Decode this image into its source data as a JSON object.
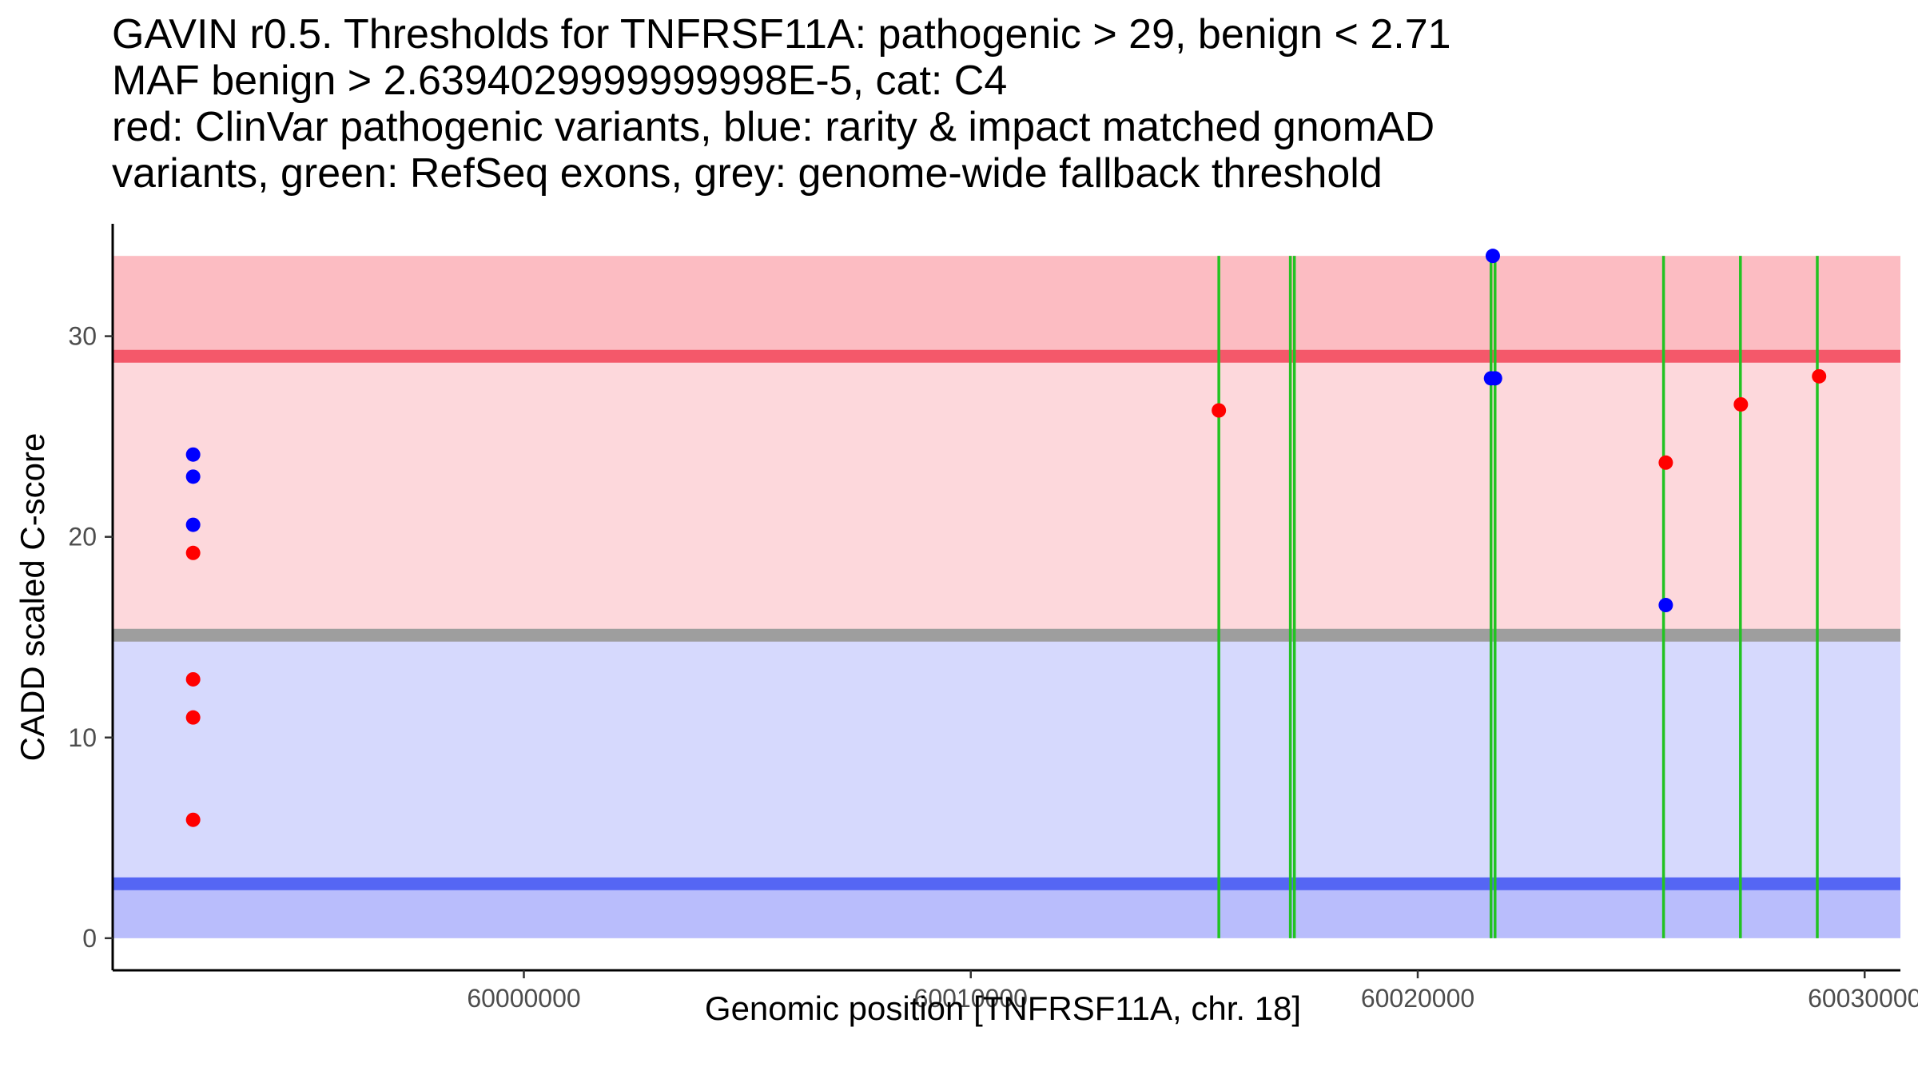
{
  "chart_data": {
    "type": "scatter",
    "title_lines": [
      "GAVIN r0.5. Thresholds for TNFRSF11A: pathogenic > 29, benign < 2.71",
      "MAF benign > 2.6394029999999998E-5, cat: C4",
      "red: ClinVar pathogenic variants, blue: rarity & impact matched gnomAD",
      "variants, green: RefSeq exons, grey: genome-wide fallback threshold"
    ],
    "xlabel": "Genomic position [TNFRSF11A, chr. 18]",
    "ylabel": "CADD scaled C-score",
    "xlim": [
      59990800,
      60030800
    ],
    "ylim": [
      -1.6,
      35.6
    ],
    "xticks": [
      {
        "value": 60000000,
        "label": "60000000"
      },
      {
        "value": 60010000,
        "label": "60010000"
      },
      {
        "value": 60020000,
        "label": "60020000"
      },
      {
        "value": 60030000,
        "label": "60030000"
      }
    ],
    "yticks": [
      {
        "value": 0,
        "label": "0"
      },
      {
        "value": 10,
        "label": "10"
      },
      {
        "value": 20,
        "label": "20"
      },
      {
        "value": 30,
        "label": "30"
      }
    ],
    "bands": [
      {
        "name": "pathogenic-upper-region",
        "ymin": 29,
        "ymax": 34,
        "color": "#fcbcc2"
      },
      {
        "name": "pathogenic-lower-region",
        "ymin": 15.1,
        "ymax": 29,
        "color": "#fdd8dc"
      },
      {
        "name": "benign-upper-region",
        "ymin": 2.71,
        "ymax": 15.1,
        "color": "#d6d9fd"
      },
      {
        "name": "benign-lower-region",
        "ymin": 0,
        "ymax": 2.71,
        "color": "#b9bdfc"
      }
    ],
    "threshold_lines": [
      {
        "name": "pathogenic-threshold-line",
        "value": 29,
        "color": "#f4586a"
      },
      {
        "name": "fallback-threshold-line",
        "value": 15.1,
        "color": "#9e9e9e"
      },
      {
        "name": "benign-threshold-line",
        "value": 2.71,
        "color": "#5566f4"
      }
    ],
    "exon_lines": {
      "color": "#22c322",
      "ymin": 0,
      "ymax": 34,
      "positions": [
        60015550,
        60017150,
        60017240,
        60021640,
        60021730,
        60025500,
        60027220,
        60028940
      ]
    },
    "series": [
      {
        "name": "ClinVar pathogenic variants",
        "color": "#ff0000",
        "points": [
          {
            "x": 59992600,
            "y": 19.2
          },
          {
            "x": 59992600,
            "y": 12.9
          },
          {
            "x": 59992600,
            "y": 11.0
          },
          {
            "x": 59992600,
            "y": 5.9
          },
          {
            "x": 60015550,
            "y": 26.3
          },
          {
            "x": 60025550,
            "y": 23.7
          },
          {
            "x": 60027230,
            "y": 26.6
          },
          {
            "x": 60028980,
            "y": 28.0
          }
        ]
      },
      {
        "name": "rarity & impact matched gnomAD variants",
        "color": "#0000ff",
        "points": [
          {
            "x": 59992600,
            "y": 24.1
          },
          {
            "x": 59992600,
            "y": 23.0
          },
          {
            "x": 59992600,
            "y": 20.6
          },
          {
            "x": 60021680,
            "y": 34.0
          },
          {
            "x": 60021640,
            "y": 27.9
          },
          {
            "x": 60021730,
            "y": 27.9
          },
          {
            "x": 60025550,
            "y": 16.6
          }
        ]
      }
    ]
  }
}
